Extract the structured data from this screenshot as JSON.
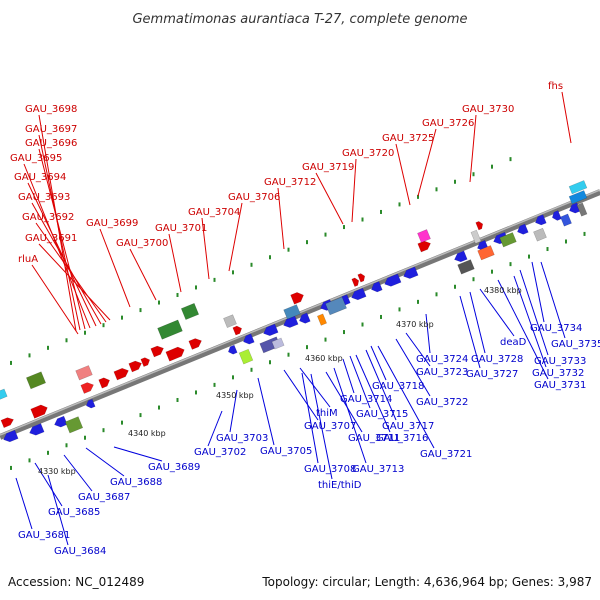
{
  "header": {
    "title": "Gemmatimonas aurantiaca T-27, complete genome"
  },
  "footer": {
    "accession": "Accession: NC_012489",
    "summary": "Topology: circular; Length: 4,636,964 bp; Genes: 3,987"
  },
  "colors": {
    "forward_label": "#cc0000",
    "reverse_label": "#0000cc",
    "backbone": "#888888"
  },
  "scale": [
    {
      "label": "4330 kbp"
    },
    {
      "label": "4340 kbp"
    },
    {
      "label": "4350 kbp"
    },
    {
      "label": "4360 kbp"
    },
    {
      "label": "4370 kbp"
    },
    {
      "label": "4380 kbp"
    }
  ],
  "forward_labels": [
    "GAU_3698",
    "GAU_3697",
    "GAU_3696",
    "GAU_3695",
    "GAU_3694",
    "GAU_3693",
    "GAU_3692",
    "GAU_3691",
    "rluA",
    "GAU_3699",
    "GAU_3700",
    "GAU_3701",
    "GAU_3704",
    "GAU_3706",
    "GAU_3712",
    "GAU_3719",
    "GAU_3720",
    "GAU_3725",
    "GAU_3726",
    "GAU_3730",
    "fhs"
  ],
  "reverse_labels": [
    "GAU_3681",
    "GAU_3684",
    "GAU_3685",
    "GAU_3687",
    "GAU_3688",
    "GAU_3689",
    "GAU_3702",
    "GAU_3703",
    "GAU_3705",
    "GAU_3707",
    "thiM",
    "GAU_3708",
    "thiE/thiD",
    "GAU_3711",
    "GAU_3713",
    "GAU_3714",
    "GAU_3715",
    "GAU_3716",
    "GAU_3717",
    "GAU_3718",
    "GAU_3721",
    "GAU_3722",
    "GAU_3723",
    "GAU_3724",
    "GAU_3727",
    "GAU_3728",
    "deaD",
    "GAU_3731",
    "GAU_3732",
    "GAU_3733",
    "GAU_3734",
    "GAU_3735"
  ]
}
